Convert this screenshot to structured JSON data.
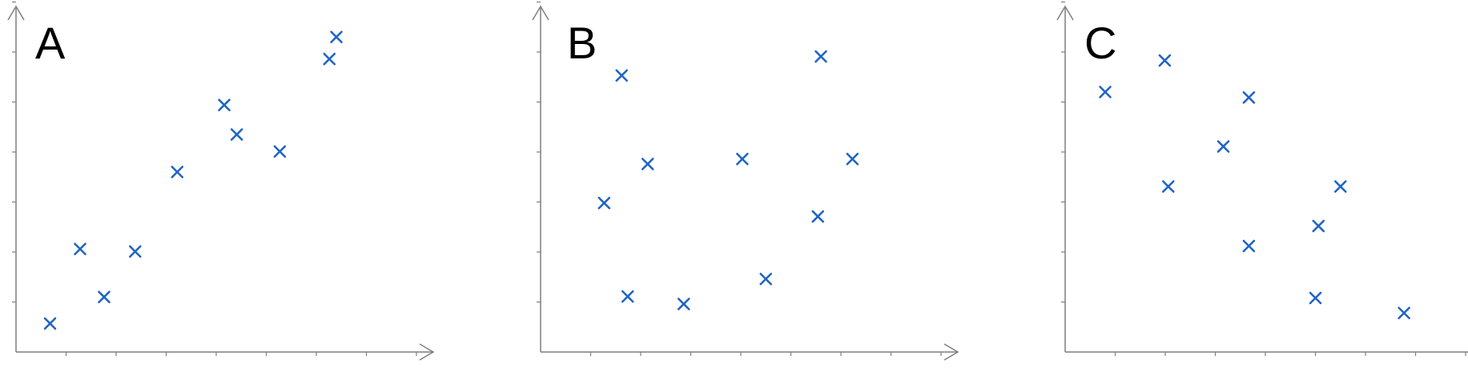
{
  "colors": {
    "marker": "#1f64c4",
    "axis": "#7f7f7f"
  },
  "chart_data": [
    {
      "type": "scatter",
      "title": "A",
      "xlabel": "",
      "ylabel": "",
      "grid": false,
      "xlim": [
        0,
        8
      ],
      "ylim": [
        0,
        7
      ],
      "x": [
        0.68,
        1.28,
        1.76,
        2.38,
        3.22,
        4.16,
        4.41,
        5.27,
        6.26,
        6.4
      ],
      "y": [
        0.57,
        2.06,
        1.1,
        2.01,
        3.6,
        4.94,
        4.35,
        4.01,
        5.86,
        6.3
      ]
    },
    {
      "type": "scatter",
      "title": "B",
      "xlabel": "",
      "ylabel": "",
      "grid": false,
      "xlim": [
        0,
        8
      ],
      "ylim": [
        0,
        7
      ],
      "x": [
        1.27,
        1.62,
        1.74,
        2.14,
        2.86,
        4.03,
        4.5,
        5.54,
        5.6,
        6.23
      ],
      "y": [
        2.98,
        5.53,
        1.11,
        3.76,
        0.96,
        3.86,
        1.46,
        2.71,
        5.91,
        3.86
      ]
    },
    {
      "type": "scatter",
      "title": "C",
      "xlabel": "",
      "ylabel": "",
      "grid": false,
      "xlim": [
        0,
        8
      ],
      "ylim": [
        0,
        7
      ],
      "x": [
        0.8,
        1.99,
        2.06,
        3.16,
        3.67,
        3.67,
        5.0,
        5.06,
        5.5,
        6.77
      ],
      "y": [
        5.2,
        5.83,
        3.31,
        4.11,
        5.09,
        2.12,
        1.08,
        2.52,
        3.31,
        0.78
      ]
    }
  ]
}
